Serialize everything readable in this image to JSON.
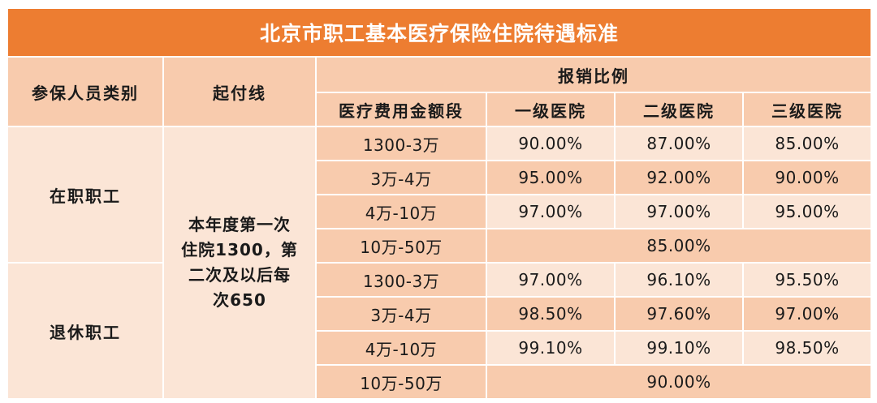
{
  "title": "北京市职工基本医疗保险住院待遇标准",
  "headers": {
    "category": "参保人员类别",
    "deductible": "起付线",
    "reimbursement": "报销比例",
    "amount_range": "医疗费用金额段",
    "level1": "一级医院",
    "level2": "二级医院",
    "level3": "三级医院"
  },
  "deductible_text": [
    "本年度第一次",
    "住院1300，第",
    "二次及以后每",
    "次650"
  ],
  "groups": [
    {
      "category": "在职职工",
      "rows": [
        {
          "range": "1300-3万",
          "level1": "90.00%",
          "level2": "87.00%",
          "level3": "85.00%"
        },
        {
          "range": "3万-4万",
          "level1": "95.00%",
          "level2": "92.00%",
          "level3": "90.00%"
        },
        {
          "range": "4万-10万",
          "level1": "97.00%",
          "level2": "97.00%",
          "level3": "95.00%"
        },
        {
          "range": "10万-50万",
          "all": "85.00%"
        }
      ]
    },
    {
      "category": "退休职工",
      "rows": [
        {
          "range": "1300-3万",
          "level1": "97.00%",
          "level2": "96.10%",
          "level3": "95.50%"
        },
        {
          "range": "3万-4万",
          "level1": "98.50%",
          "level2": "97.60%",
          "level3": "97.00%"
        },
        {
          "range": "4万-10万",
          "level1": "99.10%",
          "level2": "99.10%",
          "level3": "98.50%"
        },
        {
          "range": "10万-50万",
          "all": "90.00%"
        }
      ]
    }
  ],
  "colors": {
    "title_bg": "#ed7d31",
    "header_bg": "#f8cbad",
    "light_bg": "#fbe5d6",
    "border": "#ffffff"
  }
}
